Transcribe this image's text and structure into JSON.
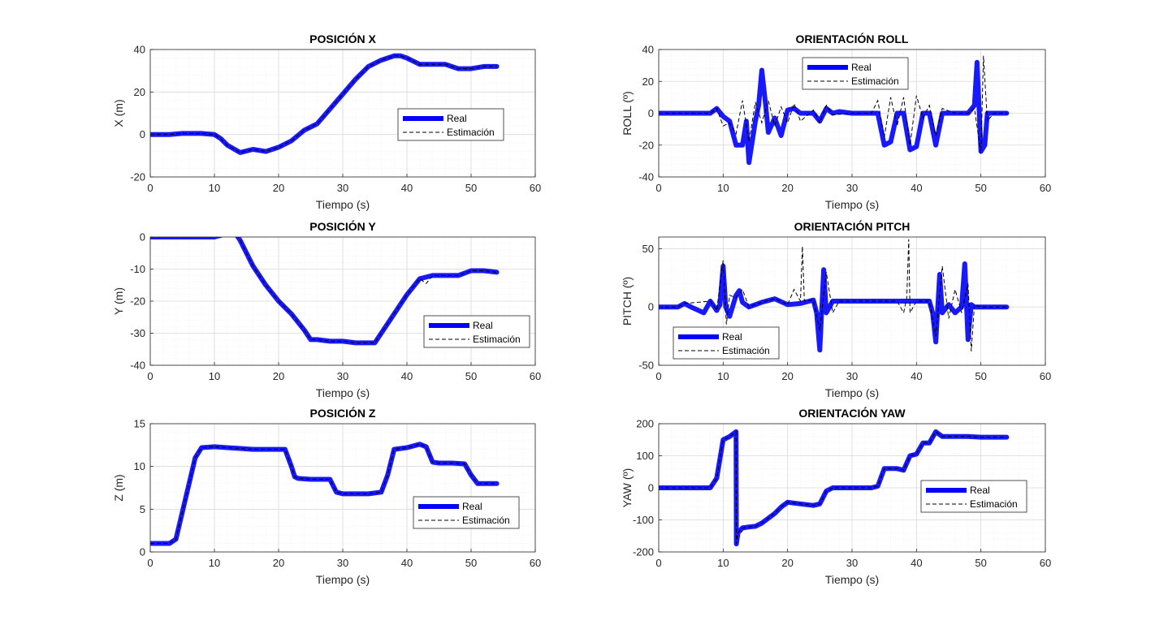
{
  "colors": {
    "real": "#0000ff",
    "estimate": "#000000",
    "grid_major": "#d9d9d9",
    "grid_minor": "#ececec",
    "axis": "#262626"
  },
  "chart_data": [
    {
      "type": "line",
      "title": "POSICIÓN X",
      "xlabel": "Tiempo (s)",
      "ylabel": "X (m)",
      "xlim": [
        0,
        60
      ],
      "ylim": [
        -20,
        40
      ],
      "xticks": [
        0,
        10,
        20,
        30,
        40,
        50,
        60
      ],
      "yticks": [
        -20,
        0,
        20,
        40
      ],
      "grid": "on",
      "minor_grid": "on",
      "legend": {
        "placement": "right-middle",
        "entries": [
          "Real",
          "Estimación"
        ]
      },
      "series": [
        {
          "name": "Real",
          "style": "solid-thick",
          "x": [
            0,
            3,
            5,
            8,
            10,
            11,
            12,
            14,
            16,
            18,
            20,
            22,
            24,
            26,
            28,
            30,
            32,
            34,
            36,
            38,
            39,
            40,
            42,
            44,
            46,
            48,
            50,
            52,
            54
          ],
          "y": [
            0,
            0,
            0.5,
            0.5,
            0,
            -2,
            -5,
            -8.5,
            -7,
            -8,
            -6,
            -3,
            2,
            5,
            12,
            19,
            26,
            32,
            35,
            37,
            37,
            36,
            33,
            33,
            33,
            31,
            31,
            32,
            32
          ]
        },
        {
          "name": "Estimación",
          "style": "dashed",
          "x": [
            0,
            3,
            5,
            8,
            10,
            11,
            12,
            14,
            16,
            18,
            20,
            22,
            24,
            26,
            28,
            30,
            32,
            34,
            36,
            38,
            39,
            40,
            42,
            44,
            46,
            48,
            50,
            52,
            54
          ],
          "y": [
            0,
            0,
            0.5,
            0.5,
            0,
            -2,
            -5,
            -8.5,
            -7,
            -8,
            -6,
            -3,
            2,
            5,
            12,
            19,
            26,
            32,
            35,
            37,
            37,
            36,
            33,
            33,
            33,
            31,
            31,
            32,
            32
          ]
        }
      ]
    },
    {
      "type": "line",
      "title": "ORIENTACIÓN ROLL",
      "xlabel": "Tiempo (s)",
      "ylabel": "ROLL (º)",
      "xlim": [
        0,
        60
      ],
      "ylim": [
        -40,
        40
      ],
      "xticks": [
        0,
        10,
        20,
        30,
        40,
        50,
        60
      ],
      "yticks": [
        -40,
        -20,
        0,
        20,
        40
      ],
      "grid": "on",
      "minor_grid": "on",
      "legend": {
        "placement": "top-middle",
        "entries": [
          "Real",
          "Estimación"
        ]
      },
      "series": [
        {
          "name": "Real",
          "style": "solid-thick",
          "x": [
            0,
            8,
            9,
            10,
            11,
            12,
            13,
            13.6,
            14,
            15,
            15.5,
            16,
            16.6,
            17,
            18,
            19,
            20,
            21,
            22,
            24,
            25,
            26,
            27,
            28,
            30,
            32,
            34,
            35,
            36,
            37,
            38,
            39,
            40,
            41,
            42,
            43,
            44,
            46,
            48,
            49,
            49.4,
            50,
            50.6,
            51,
            52,
            54
          ],
          "y": [
            0,
            0,
            3,
            -2,
            -5,
            -20,
            -20,
            -5,
            -31,
            -5,
            5,
            27,
            5,
            -12,
            -3,
            -14,
            2,
            3,
            0,
            0,
            -5,
            3,
            0,
            1,
            0,
            0,
            0,
            -20,
            -18,
            0,
            0,
            -23,
            -21,
            0,
            0,
            -20,
            0,
            0,
            0,
            5,
            32,
            -24,
            -20,
            0,
            0,
            0
          ]
        },
        {
          "name": "Estimación",
          "style": "dashed",
          "x": [
            0,
            8,
            9,
            10,
            11,
            12,
            13,
            14,
            15,
            16,
            17,
            18,
            19,
            20,
            21,
            22,
            24,
            25,
            26,
            27,
            30,
            33,
            34,
            35,
            36,
            37,
            38,
            39,
            40,
            41,
            42,
            43,
            44,
            46,
            48,
            49,
            50,
            50.4,
            51,
            52,
            54
          ],
          "y": [
            0,
            0,
            3,
            -8,
            -6,
            -13,
            8,
            -18,
            7,
            -6,
            8,
            -8,
            4,
            -6,
            6,
            -5,
            2,
            -6,
            5,
            -1,
            0,
            0,
            8,
            -15,
            10,
            -8,
            10,
            -20,
            11,
            -3,
            5,
            -14,
            3,
            0,
            0,
            3,
            -25,
            36,
            -5,
            0,
            0
          ]
        }
      ]
    },
    {
      "type": "line",
      "title": "POSICIÓN Y",
      "xlabel": "Tiempo (s)",
      "ylabel": "Y (m)",
      "xlim": [
        0,
        60
      ],
      "ylim": [
        -40,
        0
      ],
      "xticks": [
        0,
        10,
        20,
        30,
        40,
        50,
        60
      ],
      "yticks": [
        -40,
        -30,
        -20,
        -10,
        0
      ],
      "grid": "on",
      "minor_grid": "on",
      "legend": {
        "placement": "bottom-right",
        "entries": [
          "Real",
          "Estimación"
        ]
      },
      "series": [
        {
          "name": "Real",
          "style": "solid-thick",
          "x": [
            0,
            5,
            10,
            11,
            12,
            12.5,
            13,
            14,
            16,
            18,
            20,
            22,
            24,
            25,
            26,
            28,
            30,
            32,
            34,
            35,
            36,
            38,
            40,
            42,
            44,
            46,
            48,
            50,
            52,
            54
          ],
          "y": [
            0,
            0,
            0,
            0.5,
            2,
            2.5,
            2,
            -1,
            -9,
            -15,
            -20,
            -24,
            -29,
            -32,
            -32,
            -32.5,
            -32.5,
            -33,
            -33,
            -33,
            -30,
            -24,
            -18,
            -13,
            -12,
            -12,
            -12,
            -10.5,
            -10.5,
            -11
          ]
        },
        {
          "name": "Estimación",
          "style": "dashed",
          "x": [
            0,
            5,
            10,
            11,
            12,
            12.5,
            13,
            14,
            16,
            18,
            20,
            22,
            24,
            25,
            26,
            28,
            30,
            32,
            34,
            35,
            36,
            38,
            40,
            42,
            43,
            44,
            46,
            48,
            50,
            52,
            54
          ],
          "y": [
            0,
            0,
            0,
            0.5,
            2,
            2.5,
            2,
            -1,
            -9,
            -15,
            -20,
            -24,
            -29,
            -32,
            -32,
            -32.5,
            -32.5,
            -33,
            -33,
            -33,
            -30,
            -24,
            -18,
            -13,
            -14.5,
            -12,
            -12,
            -12,
            -10.5,
            -10.5,
            -11
          ]
        }
      ]
    },
    {
      "type": "line",
      "title": "ORIENTACIÓN PITCH",
      "xlabel": "Tiempo (s)",
      "ylabel": "PITCH (º)",
      "xlim": [
        0,
        60
      ],
      "ylim": [
        -50,
        60
      ],
      "xticks": [
        0,
        10,
        20,
        30,
        40,
        50,
        60
      ],
      "yticks": [
        -50,
        0,
        50
      ],
      "grid": "on",
      "minor_grid": "on",
      "legend": {
        "placement": "bottom-left",
        "entries": [
          "Real",
          "Estimación"
        ]
      },
      "series": [
        {
          "name": "Real",
          "style": "solid-thick",
          "x": [
            0,
            3,
            4,
            5,
            7,
            8,
            9,
            9.5,
            10,
            10.4,
            11,
            12,
            12.5,
            13,
            14,
            16,
            18,
            20,
            22,
            24,
            24.5,
            25,
            25.6,
            26,
            27,
            28,
            30,
            35,
            38,
            39,
            40,
            42,
            42.5,
            43,
            43.6,
            44,
            45,
            46,
            47,
            47.5,
            48,
            48.5,
            49,
            50,
            52,
            54
          ],
          "y": [
            0,
            0,
            3,
            0,
            -5,
            5,
            -3,
            2,
            35,
            0,
            -8,
            10,
            14,
            4,
            0,
            4,
            7,
            2,
            3,
            6,
            -5,
            -37,
            32,
            -5,
            5,
            5,
            5,
            5,
            5,
            5,
            5,
            5,
            -5,
            -30,
            28,
            -5,
            2,
            -5,
            0,
            37,
            -28,
            2,
            0,
            0,
            0,
            0
          ]
        },
        {
          "name": "Estimación",
          "style": "dashed",
          "x": [
            0,
            3,
            4,
            8,
            9,
            10,
            10.5,
            11,
            12,
            13,
            14,
            16,
            18,
            20,
            21,
            22,
            22.3,
            22.6,
            24,
            25,
            26,
            27,
            28,
            30,
            35,
            37,
            38,
            38.5,
            38.8,
            39,
            40,
            42,
            43,
            44,
            45,
            46,
            47,
            48,
            48.5,
            49,
            50,
            52,
            54
          ],
          "y": [
            0,
            0,
            3,
            5,
            -3,
            40,
            -15,
            10,
            8,
            15,
            0,
            4,
            7,
            2,
            15,
            5,
            52,
            5,
            6,
            -20,
            30,
            -5,
            5,
            5,
            5,
            5,
            -5,
            8,
            58,
            -5,
            5,
            5,
            -25,
            35,
            -10,
            15,
            -5,
            20,
            -38,
            2,
            0,
            0,
            0
          ]
        }
      ]
    },
    {
      "type": "line",
      "title": "POSICIÓN Z",
      "xlabel": "Tiempo (s)",
      "ylabel": "Z (m)",
      "xlim": [
        0,
        60
      ],
      "ylim": [
        0,
        15
      ],
      "xticks": [
        0,
        10,
        20,
        30,
        40,
        50,
        60
      ],
      "yticks": [
        0,
        5,
        10,
        15
      ],
      "grid": "on",
      "minor_grid": "on",
      "legend": {
        "placement": "bottom-right",
        "entries": [
          "Real",
          "Estimación"
        ]
      },
      "series": [
        {
          "name": "Real",
          "style": "solid-thick",
          "x": [
            0,
            3,
            4,
            7,
            8,
            10,
            12,
            14,
            16,
            18,
            20,
            21,
            22,
            22.5,
            23,
            25,
            27,
            28,
            29,
            30,
            32,
            34,
            36,
            37,
            38,
            40,
            42,
            43,
            44,
            45,
            47,
            49,
            50,
            51,
            52,
            54
          ],
          "y": [
            1,
            1,
            1.5,
            11,
            12.2,
            12.3,
            12.2,
            12.1,
            12,
            12,
            12,
            12,
            10,
            8.8,
            8.6,
            8.5,
            8.5,
            8.5,
            7,
            6.8,
            6.8,
            6.8,
            7,
            9,
            12,
            12.2,
            12.6,
            12.3,
            10.5,
            10.4,
            10.4,
            10.3,
            9,
            8,
            8,
            8
          ]
        },
        {
          "name": "Estimación",
          "style": "dashed",
          "x": [
            0,
            3,
            4,
            7,
            8,
            10,
            12,
            14,
            16,
            18,
            20,
            21,
            22,
            22.5,
            23,
            25,
            27,
            28,
            29,
            30,
            32,
            34,
            36,
            37,
            38,
            40,
            42,
            43,
            44,
            45,
            47,
            49,
            50,
            51,
            52,
            54
          ],
          "y": [
            1,
            1,
            1.5,
            11,
            12.2,
            12.3,
            12.2,
            12.1,
            12,
            12,
            12,
            12,
            10,
            8.8,
            8.6,
            8.5,
            8.5,
            8.5,
            7,
            6.8,
            6.8,
            6.8,
            7,
            9,
            12,
            12.2,
            12.6,
            12.3,
            10.5,
            10.4,
            10.4,
            10.3,
            9,
            8,
            8,
            8
          ]
        }
      ]
    },
    {
      "type": "line",
      "title": "ORIENTACIÓN YAW",
      "xlabel": "Tiempo (s)",
      "ylabel": "YAW (º)",
      "xlim": [
        0,
        60
      ],
      "ylim": [
        -200,
        200
      ],
      "xticks": [
        0,
        10,
        20,
        30,
        40,
        50,
        60
      ],
      "yticks": [
        -200,
        -100,
        0,
        100,
        200
      ],
      "grid": "on",
      "minor_grid": "on",
      "legend": {
        "placement": "right-middle",
        "entries": [
          "Real",
          "Estimación"
        ]
      },
      "series": [
        {
          "name": "Real",
          "style": "solid-thick",
          "x": [
            0,
            8,
            9,
            10,
            11,
            12,
            12.05,
            12.3,
            13,
            14,
            15,
            16,
            17,
            18,
            19,
            20,
            22,
            24,
            25,
            26,
            27,
            30,
            33,
            34,
            35,
            37,
            38,
            39,
            40,
            41,
            42,
            43,
            44,
            46,
            48,
            50,
            54
          ],
          "y": [
            0,
            0,
            30,
            150,
            160,
            175,
            -175,
            -140,
            -125,
            -122,
            -120,
            -110,
            -95,
            -80,
            -60,
            -45,
            -50,
            -55,
            -50,
            -10,
            0,
            0,
            0,
            5,
            60,
            60,
            55,
            100,
            105,
            140,
            140,
            175,
            160,
            160,
            160,
            158,
            158
          ]
        },
        {
          "name": "Estimación",
          "style": "dashed",
          "x": [
            0,
            8,
            9,
            10,
            11,
            12,
            12.05,
            12.3,
            13,
            14,
            15,
            16,
            17,
            18,
            19,
            20,
            22,
            24,
            25,
            26,
            27,
            30,
            33,
            34,
            35,
            37,
            38,
            39,
            40,
            41,
            42,
            43,
            44,
            46,
            48,
            50,
            54
          ],
          "y": [
            0,
            0,
            30,
            150,
            160,
            175,
            -175,
            -140,
            -125,
            -122,
            -120,
            -110,
            -95,
            -80,
            -60,
            -45,
            -50,
            -55,
            -50,
            -10,
            0,
            0,
            0,
            5,
            60,
            60,
            55,
            100,
            105,
            140,
            140,
            175,
            160,
            160,
            160,
            158,
            158
          ]
        }
      ]
    }
  ]
}
